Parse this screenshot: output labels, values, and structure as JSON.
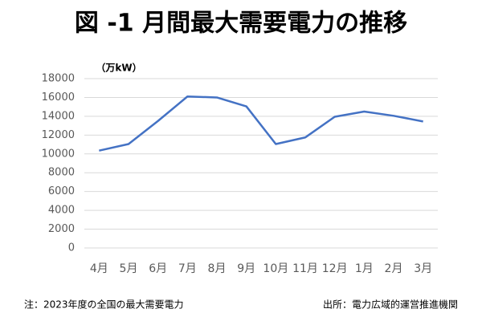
{
  "chart_data": {
    "type": "line",
    "title": "図 -1 月間最大需要電力の推移",
    "ylabel": "（万kW）",
    "categories": [
      "4月",
      "5月",
      "6月",
      "7月",
      "8月",
      "9月",
      "10月",
      "11月",
      "12月",
      "1月",
      "2月",
      "3月"
    ],
    "series": [
      {
        "name": "最大需要電力",
        "color": "#4472c4",
        "values": [
          10350,
          11050,
          13500,
          16100,
          16000,
          15050,
          11050,
          11750,
          13950,
          14500,
          14050,
          13450
        ]
      }
    ],
    "ylim": [
      0,
      18000
    ],
    "yticks": [
      0,
      2000,
      4000,
      6000,
      8000,
      10000,
      12000,
      14000,
      16000,
      18000
    ],
    "grid": true,
    "note": "注：2023年度の全国の最大需要電力",
    "source": "出所：電力広域的運営推進機関"
  }
}
